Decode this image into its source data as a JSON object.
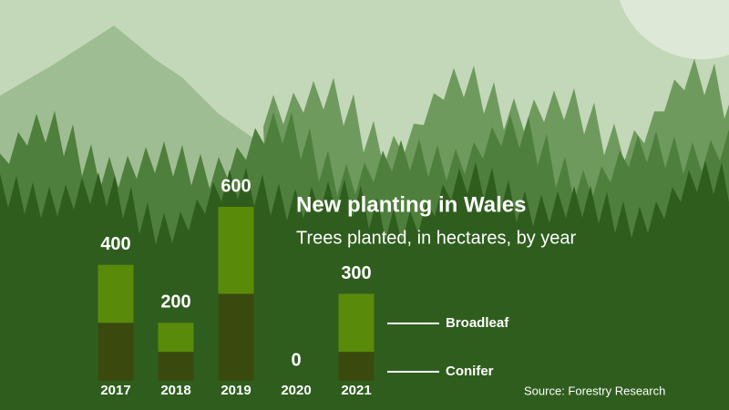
{
  "chart_data": {
    "type": "stacked-bar",
    "title": "New planting in Wales",
    "subtitle": "Trees planted, in hectares, by year",
    "source": "Source: Forestry Research",
    "categories": [
      "2017",
      "2018",
      "2019",
      "2020",
      "2021"
    ],
    "series": [
      {
        "name": "Conifer",
        "color": "#3a4a0e",
        "values": [
          200,
          100,
          300,
          0,
          100
        ]
      },
      {
        "name": "Broadleaf",
        "color": "#5a8a0a",
        "values": [
          200,
          100,
          300,
          0,
          200
        ]
      }
    ],
    "totals": [
      400,
      200,
      600,
      0,
      300
    ]
  }
}
